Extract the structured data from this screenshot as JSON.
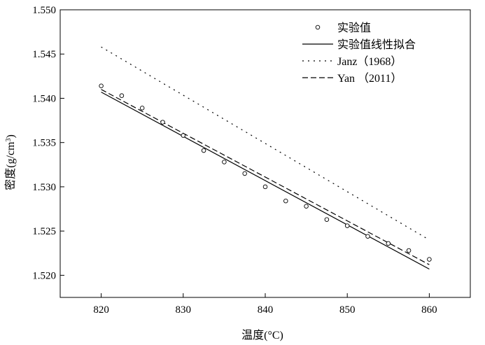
{
  "chart_data": {
    "type": "scatter",
    "xlabel": "温度(°C)",
    "ylabel": "密度(g/cm³)",
    "ylabel_parts": {
      "main": "密度(g/cm",
      "sup": "3",
      "close": ")"
    },
    "xlim": [
      815,
      865
    ],
    "ylim": [
      1.5175,
      1.55
    ],
    "x_ticks": [
      820,
      830,
      840,
      850,
      860
    ],
    "x_tick_labels": [
      "820",
      "830",
      "840",
      "850",
      "860"
    ],
    "y_ticks": [
      1.52,
      1.525,
      1.53,
      1.535,
      1.54,
      1.545,
      1.55
    ],
    "y_tick_labels": [
      "1.520",
      "1.525",
      "1.530",
      "1.535",
      "1.540",
      "1.545",
      "1.550"
    ],
    "grid": false,
    "legend_position": "top-right",
    "series": [
      {
        "name": "实验值",
        "style": "markers",
        "marker": "open-circle",
        "color": "#000000",
        "points": [
          {
            "x": 820.0,
            "y": 1.5414
          },
          {
            "x": 822.5,
            "y": 1.5403
          },
          {
            "x": 825.0,
            "y": 1.5389
          },
          {
            "x": 827.5,
            "y": 1.5373
          },
          {
            "x": 830.0,
            "y": 1.5358
          },
          {
            "x": 832.5,
            "y": 1.5341
          },
          {
            "x": 835.0,
            "y": 1.5328
          },
          {
            "x": 837.5,
            "y": 1.5315
          },
          {
            "x": 840.0,
            "y": 1.53
          },
          {
            "x": 842.5,
            "y": 1.5284
          },
          {
            "x": 845.0,
            "y": 1.5278
          },
          {
            "x": 847.5,
            "y": 1.5263
          },
          {
            "x": 850.0,
            "y": 1.5256
          },
          {
            "x": 852.5,
            "y": 1.5244
          },
          {
            "x": 855.0,
            "y": 1.5236
          },
          {
            "x": 857.5,
            "y": 1.5228
          },
          {
            "x": 860.0,
            "y": 1.5218
          }
        ]
      },
      {
        "name": "实验值线性拟合",
        "style": "solid",
        "color": "#000000",
        "points": [
          {
            "x": 820,
            "y": 1.5407
          },
          {
            "x": 860,
            "y": 1.5207
          }
        ]
      },
      {
        "name": "Janz（1968）",
        "style": "dotted",
        "color": "#000000",
        "points": [
          {
            "x": 820,
            "y": 1.5458
          },
          {
            "x": 860,
            "y": 1.524
          }
        ]
      },
      {
        "name": "Yan （2011）",
        "style": "dashed",
        "color": "#000000",
        "points": [
          {
            "x": 820,
            "y": 1.541
          },
          {
            "x": 860,
            "y": 1.5212
          }
        ]
      }
    ]
  }
}
